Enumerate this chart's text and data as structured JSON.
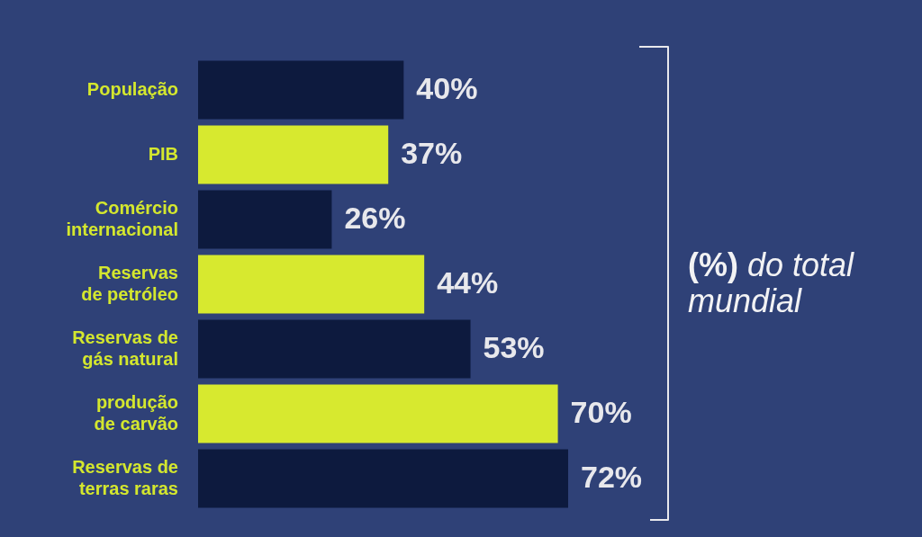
{
  "chart_data": {
    "type": "bar",
    "orientation": "horizontal",
    "categories": [
      "População",
      "PIB",
      "Comércio internacional",
      "Reservas de petróleo",
      "Reservas de gás natural",
      "produção de carvão",
      "Reservas de terras raras"
    ],
    "values": [
      40,
      37,
      26,
      44,
      53,
      70,
      72
    ],
    "colors": [
      "#0d1a3e",
      "#d7e92f",
      "#0d1a3e",
      "#d7e92f",
      "#0d1a3e",
      "#d7e92f",
      "#0d1a3e"
    ],
    "value_labels": [
      "40%",
      "37%",
      "26%",
      "44%",
      "53%",
      "70%",
      "72%"
    ],
    "tick_labels": "y",
    "annotations": [
      "(%) do total mundial"
    ]
  }
}
